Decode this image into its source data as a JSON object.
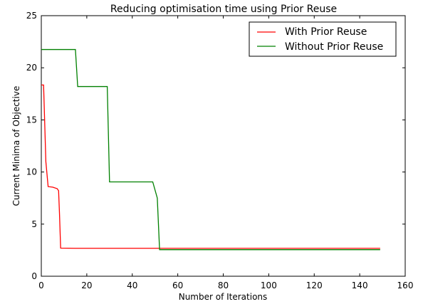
{
  "chart_data": {
    "type": "line",
    "title": "Reducing optimisation time using Prior Reuse",
    "xlabel": "Number of Iterations",
    "ylabel": "Current Minima of Objective",
    "xlim": [
      0,
      160
    ],
    "ylim": [
      0,
      25
    ],
    "x_ticks": [
      0,
      20,
      40,
      60,
      80,
      100,
      120,
      140,
      160
    ],
    "y_ticks": [
      0,
      5,
      10,
      15,
      20,
      25
    ],
    "grid": false,
    "legend_position": "top-right",
    "series": [
      {
        "name": "With Prior Reuse",
        "color": "#ff0000",
        "points": [
          [
            0,
            18.35
          ],
          [
            1,
            18.35
          ],
          [
            2,
            11.0
          ],
          [
            3,
            8.6
          ],
          [
            5,
            8.55
          ],
          [
            7,
            8.4
          ],
          [
            7.6,
            8.2
          ],
          [
            8,
            6.0
          ],
          [
            8.5,
            2.7
          ],
          [
            15,
            2.68
          ],
          [
            149,
            2.68
          ]
        ]
      },
      {
        "name": "Without Prior Reuse",
        "color": "#008000",
        "points": [
          [
            0,
            21.75
          ],
          [
            15,
            21.75
          ],
          [
            16,
            18.2
          ],
          [
            29,
            18.2
          ],
          [
            30,
            9.05
          ],
          [
            49,
            9.05
          ],
          [
            51,
            7.5
          ],
          [
            52,
            2.55
          ],
          [
            149,
            2.55
          ]
        ]
      }
    ]
  }
}
